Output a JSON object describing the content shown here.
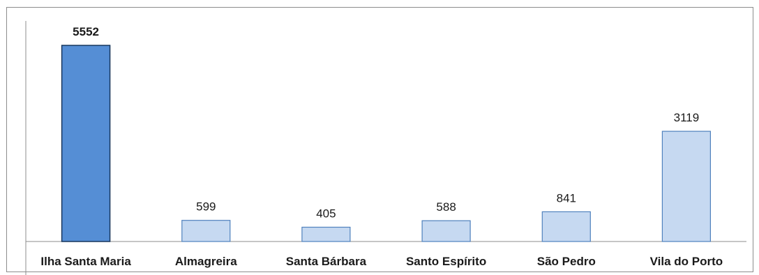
{
  "chart_data": {
    "type": "bar",
    "categories": [
      "Ilha Santa Maria",
      "Almagreira",
      "Santa Bárbara",
      "Santo Espírito",
      "São Pedro",
      "Vila do Porto"
    ],
    "values": [
      5552,
      599,
      405,
      588,
      841,
      3119
    ],
    "value_labels": [
      "5552",
      "599",
      "405",
      "588",
      "841",
      "3119"
    ],
    "title": "",
    "xlabel": "",
    "ylabel": "",
    "ylim": [
      0,
      5552
    ],
    "grid": false,
    "legend": "none",
    "highlight_index": 0,
    "colors": {
      "highlight_fill": "#558ed5",
      "highlight_stroke": "#17365d",
      "bar_fill": "#c6d9f1",
      "bar_stroke": "#4f81bd",
      "axis": "#8c8c8c"
    }
  }
}
